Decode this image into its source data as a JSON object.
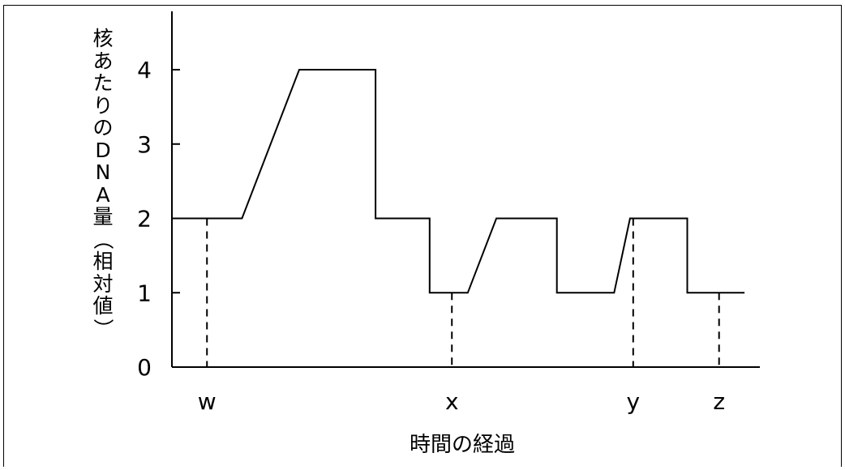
{
  "chart_data": {
    "type": "line",
    "xlabel": "時間の経過",
    "ylabel": "核あたりのDNA量（相対値）",
    "ylim": [
      0,
      4
    ],
    "y_ticks": [
      "0",
      "1",
      "2",
      "3",
      "4"
    ],
    "grid": false,
    "series": [
      {
        "values": [
          [
            0,
            2
          ],
          [
            2.1,
            2
          ],
          [
            3.9,
            4
          ],
          [
            6.3,
            4
          ],
          [
            6.3,
            2
          ],
          [
            8.0,
            2
          ],
          [
            8.0,
            1
          ],
          [
            9.2,
            1
          ],
          [
            10.1,
            2
          ],
          [
            12.0,
            2
          ],
          [
            12.0,
            1
          ],
          [
            13.8,
            1
          ],
          [
            14.3,
            2
          ],
          [
            16.1,
            2
          ],
          [
            16.1,
            1
          ],
          [
            17.9,
            1
          ]
        ]
      }
    ],
    "markers": [
      {
        "label": "w",
        "x": 1.0,
        "y": 2
      },
      {
        "label": "x",
        "x": 8.7,
        "y": 1
      },
      {
        "label": "y",
        "x": 14.4,
        "y": 2
      },
      {
        "label": "z",
        "x": 17.1,
        "y": 1
      }
    ]
  }
}
